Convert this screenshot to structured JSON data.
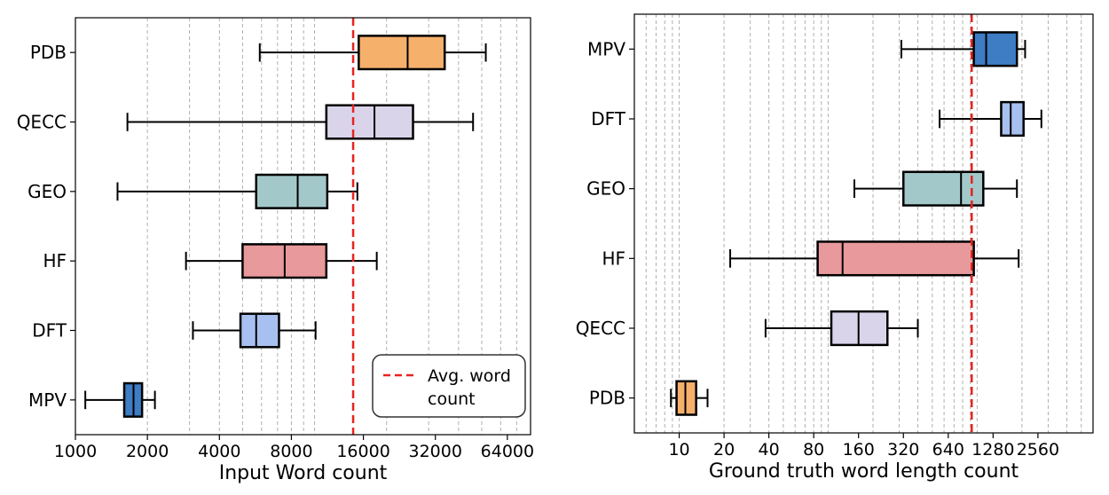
{
  "chart_data": [
    {
      "type": "boxplot",
      "orientation": "horizontal",
      "xscale": "log2",
      "xlim": [
        1000,
        80000
      ],
      "xlabel": "Input Word count",
      "xticks": [
        1000,
        2000,
        4000,
        8000,
        16000,
        32000,
        64000
      ],
      "xtick_labels": [
        "1000",
        "2000",
        "4000",
        "8000",
        "16000",
        "32000",
        "64000"
      ],
      "grid": "x-minor-dashed",
      "categories": [
        "PDB",
        "QECC",
        "GEO",
        "HF",
        "DFT",
        "MPV"
      ],
      "series": [
        {
          "name": "PDB",
          "whislo": 5900,
          "q1": 15300,
          "med": 24500,
          "q3": 35000,
          "whishi": 52000,
          "color": "#f5b06c"
        },
        {
          "name": "QECC",
          "whislo": 1650,
          "q1": 11200,
          "med": 17800,
          "q3": 25800,
          "whishi": 46000,
          "color": "#dad4eb"
        },
        {
          "name": "GEO",
          "whislo": 1500,
          "q1": 5700,
          "med": 8500,
          "q3": 11300,
          "whishi": 15100,
          "color": "#a3c8c9"
        },
        {
          "name": "HF",
          "whislo": 2900,
          "q1": 5000,
          "med": 7500,
          "q3": 11200,
          "whishi": 18200,
          "color": "#e8999b"
        },
        {
          "name": "DFT",
          "whislo": 3100,
          "q1": 4900,
          "med": 5700,
          "q3": 7100,
          "whishi": 10100,
          "color": "#a8c0f0"
        },
        {
          "name": "MPV",
          "whislo": 1100,
          "q1": 1600,
          "med": 1750,
          "q3": 1900,
          "whishi": 2150,
          "color": "#3e7cc4"
        }
      ],
      "reference_line": {
        "value": 14500,
        "color": "#e8231f",
        "style": "dashed"
      },
      "legend": {
        "label": "Avg. word\ncount",
        "line1": "Avg. word",
        "line2": "count",
        "position": "lower-right"
      }
    },
    {
      "type": "boxplot",
      "orientation": "horizontal",
      "xscale": "log2",
      "xlim": [
        5,
        6000
      ],
      "xlabel": "Ground truth word length count",
      "xticks": [
        10,
        20,
        40,
        80,
        160,
        320,
        640,
        1280,
        2560
      ],
      "xtick_labels": [
        "10",
        "20",
        "40",
        "80",
        "160",
        "320",
        "640",
        "1280",
        "2560"
      ],
      "grid": "x-minor-dashed",
      "categories": [
        "MPV",
        "DFT",
        "GEO",
        "HF",
        "QECC",
        "PDB"
      ],
      "series": [
        {
          "name": "MPV",
          "whislo": 310,
          "q1": 950,
          "med": 1150,
          "q3": 1850,
          "whishi": 2100,
          "color": "#3e7cc4"
        },
        {
          "name": "DFT",
          "whislo": 560,
          "q1": 1450,
          "med": 1680,
          "q3": 2050,
          "whishi": 2700,
          "color": "#a8c0f0"
        },
        {
          "name": "GEO",
          "whislo": 150,
          "q1": 320,
          "med": 780,
          "q3": 1100,
          "whishi": 1850,
          "color": "#a3c8c9"
        },
        {
          "name": "HF",
          "whislo": 22,
          "q1": 85,
          "med": 125,
          "q3": 950,
          "whishi": 1900,
          "color": "#e8999b"
        },
        {
          "name": "QECC",
          "whislo": 38,
          "q1": 105,
          "med": 160,
          "q3": 250,
          "whishi": 400,
          "color": "#dad4eb"
        },
        {
          "name": "PDB",
          "whislo": 8.8,
          "q1": 9.6,
          "med": 11,
          "q3": 13,
          "whishi": 15.5,
          "color": "#f5b06c"
        }
      ],
      "reference_line": {
        "value": 920,
        "color": "#e8231f",
        "style": "dashed"
      }
    }
  ]
}
